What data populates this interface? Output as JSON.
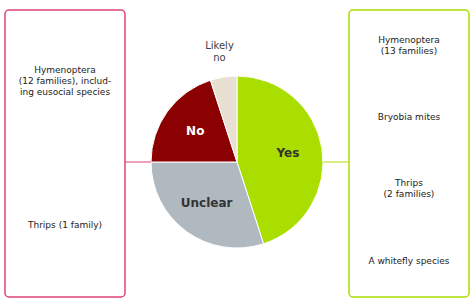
{
  "chart_data": {
    "type": "pie",
    "categories": [
      "Yes",
      "Unclear",
      "No",
      "Likely\nno"
    ],
    "values": [
      45,
      30,
      20,
      5
    ],
    "colors": [
      "#aadd00",
      "#b0b8c0",
      "#8b0000",
      "#e8e0d0"
    ],
    "annotations": [
      {
        "texts": [
          "Hymenoptera\n(12 families), includ-\ning eusocial species",
          "Thrips (1 family)"
        ],
        "color": "#dd4477"
      },
      {
        "texts": [
          "Hymenoptera\n(13 families)",
          "Bryobia mites",
          "Thrips\n(2 families)",
          "A whitefly species"
        ],
        "color": "#aadd00"
      }
    ]
  }
}
